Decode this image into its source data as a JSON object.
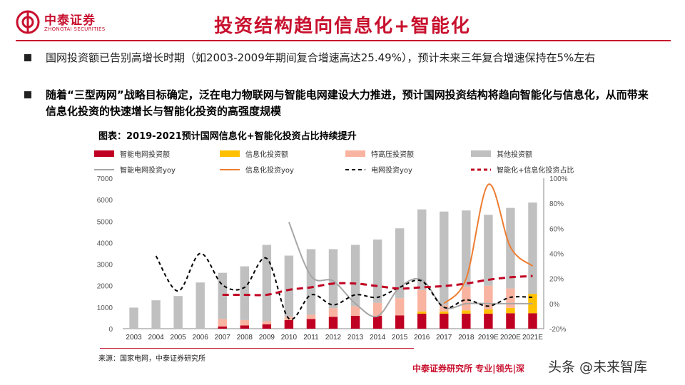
{
  "header": {
    "logo_name": "中泰证券",
    "logo_sub": "ZHONGTAI SECURITIES",
    "title": "投资结构趋向信息化+智能化"
  },
  "bullets": [
    "国网投资额已告别高增长时期（如2003-2009年期间复合增速高达25.49%），预计未来三年复合增速保持在5%左右",
    "随着“三型两网”战略目标确定，泛在电力物联网与智能电网建设大力推进，预计国网投资结构将趋向智能化与信息化，从而带来信息化投资的快速增长与智能化投资的高强度规模"
  ],
  "chart_title": "图表：2019-2021预计国网信息化+智能化投资占比持续提升",
  "source": "来源：国家电网，中泰证券研究所",
  "footer": "中泰证券研究所 专业|领先|深",
  "watermark": "头条 @未来智库",
  "colors": {
    "brand": "#c8102e",
    "smart": "#c00022",
    "info": "#ffc000",
    "uhv": "#f8b4a0",
    "other": "#c0c0c0",
    "smart_yoy": "#a6a6a6",
    "info_yoy": "#ed7d31",
    "grid_yoy": "#000000",
    "share": "#c00022"
  },
  "chart_data": {
    "type": "bar",
    "stacked": true,
    "categories": [
      "2003",
      "2004",
      "2005",
      "2006",
      "2007",
      "2008",
      "2009",
      "2010",
      "2011",
      "2012",
      "2013",
      "2014",
      "2015",
      "2016",
      "2017",
      "2018",
      "2019E",
      "2020E",
      "2021E"
    ],
    "ylim": [
      0,
      7000
    ],
    "yticks": [
      0,
      1000,
      2000,
      3000,
      4000,
      5000,
      6000,
      7000
    ],
    "y2lim": [
      -20,
      100
    ],
    "y2ticks": [
      -20,
      0,
      20,
      40,
      60,
      80,
      100
    ],
    "y2tick_labels": [
      "-20%",
      "0%",
      "20%",
      "40%",
      "60%",
      "80%",
      "100%"
    ],
    "legend_position": "top",
    "series": [
      {
        "name": "智能电网投资额",
        "kind": "bar",
        "color_key": "smart",
        "values": [
          0,
          0,
          0,
          0,
          100,
          150,
          200,
          400,
          450,
          550,
          600,
          600,
          620,
          700,
          700,
          700,
          700,
          720,
          720
        ]
      },
      {
        "name": "信息化投资额",
        "kind": "bar",
        "color_key": "info",
        "values": [
          0,
          0,
          0,
          0,
          0,
          0,
          0,
          0,
          0,
          0,
          0,
          0,
          0,
          100,
          100,
          150,
          200,
          250,
          900
        ]
      },
      {
        "name": "特高压投资额",
        "kind": "bar",
        "color_key": "uhv",
        "values": [
          0,
          0,
          0,
          0,
          350,
          250,
          150,
          150,
          200,
          400,
          450,
          600,
          800,
          1000,
          300,
          1100,
          1100,
          900,
          0
        ]
      },
      {
        "name": "其他投资额",
        "kind": "bar",
        "color_key": "other",
        "values": [
          980,
          1320,
          1520,
          2150,
          2150,
          2500,
          3550,
          2850,
          3050,
          2750,
          2850,
          2950,
          3250,
          3750,
          4350,
          3550,
          3300,
          3750,
          4250
        ]
      },
      {
        "name": "智能电网投资yoy",
        "kind": "line",
        "axis": "right",
        "color_key": "smart_yoy",
        "dash": false,
        "values": [
          null,
          null,
          null,
          null,
          null,
          null,
          null,
          65,
          22,
          18,
          0,
          -10,
          13,
          19,
          -3,
          0,
          0,
          0,
          0
        ]
      },
      {
        "name": "信息化投资yoy",
        "kind": "line",
        "axis": "right",
        "color_key": "info_yoy",
        "dash": false,
        "values": [
          null,
          null,
          null,
          null,
          null,
          null,
          null,
          null,
          null,
          null,
          null,
          null,
          null,
          null,
          0,
          20,
          95,
          45,
          30
        ]
      },
      {
        "name": "电网投资yoy",
        "kind": "line",
        "axis": "right",
        "color_key": "grid_yoy",
        "dash": true,
        "values": [
          null,
          38,
          10,
          40,
          15,
          13,
          36,
          -12,
          7,
          -1,
          7,
          5,
          13,
          18,
          -3,
          3,
          -2,
          5,
          5
        ]
      },
      {
        "name": "智能化+信息化投资占比",
        "kind": "line",
        "axis": "right",
        "color_key": "share",
        "dash": true,
        "bold": true,
        "values": [
          null,
          null,
          null,
          null,
          7,
          7,
          7,
          11,
          13,
          16,
          16,
          14,
          12,
          13,
          14,
          16,
          19,
          21,
          22
        ]
      }
    ]
  }
}
